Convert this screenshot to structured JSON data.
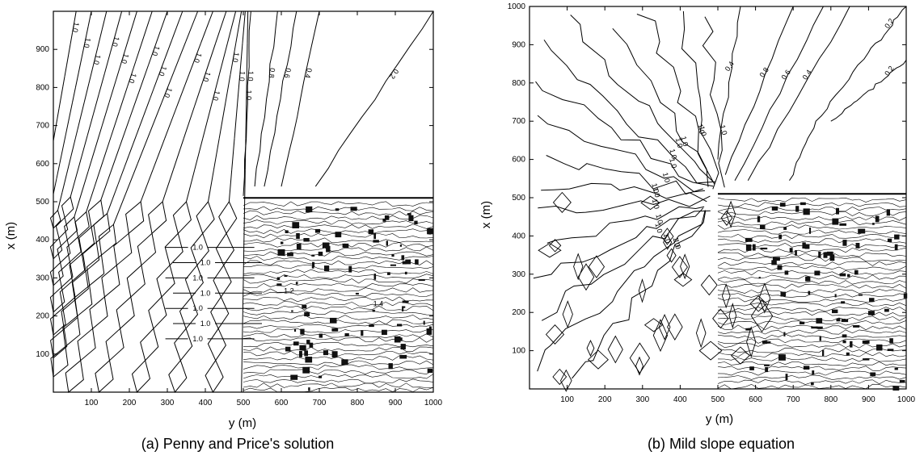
{
  "figure": {
    "panels": [
      {
        "caption": "(a) Penny and Price's solution",
        "xlabel": "y (m)",
        "ylabel": "x (m)",
        "xticks": [
          "100",
          "200",
          "300",
          "400",
          "500",
          "600",
          "700",
          "800",
          "900",
          "1000"
        ],
        "yticks": [
          "100",
          "200",
          "300",
          "400",
          "500",
          "600",
          "700",
          "800",
          "900"
        ]
      },
      {
        "caption": "(b) Mild slope equation",
        "xlabel": "y (m)",
        "ylabel": "x (m)",
        "xticks": [
          "100",
          "200",
          "300",
          "400",
          "500",
          "600",
          "700",
          "800",
          "900",
          "1000"
        ],
        "yticks": [
          "100",
          "200",
          "300",
          "400",
          "500",
          "600",
          "700",
          "800",
          "900",
          "1000"
        ]
      }
    ]
  },
  "chart_data": [
    {
      "type": "contour",
      "title": "(a) Penny and Price's solution",
      "xlabel": "y (m)",
      "ylabel": "x (m)",
      "xlim": [
        0,
        1000
      ],
      "ylim": [
        0,
        1000
      ],
      "breakwater_x": 510,
      "breakwater_y_start": 500,
      "lee_contours": [
        {
          "level": 1.0,
          "points": [
            [
              60,
              1000
            ],
            [
              0,
              660
            ]
          ]
        },
        {
          "level": 1.0,
          "points": [
            [
              100,
              1000
            ],
            [
              0,
              520
            ]
          ]
        },
        {
          "level": 1.0,
          "points": [
            [
              140,
              1000
            ],
            [
              0,
              430
            ]
          ]
        },
        {
          "level": 1.0,
          "points": [
            [
              180,
              1000
            ],
            [
              0,
              350
            ]
          ]
        },
        {
          "level": 1.0,
          "points": [
            [
              220,
              1000
            ],
            [
              0,
              280
            ]
          ]
        },
        {
          "level": 1.0,
          "points": [
            [
              260,
              1000
            ],
            [
              0,
              210
            ]
          ]
        },
        {
          "level": 1.0,
          "points": [
            [
              300,
              1000
            ],
            [
              0,
              150
            ]
          ]
        },
        {
          "level": 1.0,
          "points": [
            [
              340,
              1000
            ],
            [
              0,
              90
            ]
          ]
        },
        {
          "level": 1.0,
          "points": [
            [
              380,
              1000
            ],
            [
              0,
              40
            ]
          ]
        },
        {
          "level": 1.0,
          "points": [
            [
              420,
              1000
            ],
            [
              40,
              0
            ]
          ]
        },
        {
          "level": 1.0,
          "points": [
            [
              455,
              1000
            ],
            [
              120,
              0
            ]
          ]
        },
        {
          "level": 1.0,
          "points": [
            [
              480,
              1000
            ],
            [
              220,
              0
            ]
          ]
        },
        {
          "level": 1.0,
          "points": [
            [
              495,
              1000
            ],
            [
              320,
              0
            ]
          ]
        },
        {
          "level": 1.0,
          "points": [
            [
              505,
              1000
            ],
            [
              420,
              0
            ]
          ]
        },
        {
          "level": 1.0,
          "points": [
            [
              512,
              1000
            ],
            [
              495,
              0
            ]
          ]
        }
      ],
      "shadow_contours": [
        {
          "level": 1.0,
          "points": [
            [
              520,
              1000
            ],
            [
              500,
              515
            ]
          ]
        },
        {
          "level": 0.8,
          "points": [
            [
              590,
              1000
            ],
            [
              530,
              540
            ]
          ]
        },
        {
          "level": 0.6,
          "points": [
            [
              640,
              1000
            ],
            [
              555,
              540
            ]
          ]
        },
        {
          "level": 0.4,
          "points": [
            [
              700,
              1000
            ],
            [
              600,
              540
            ]
          ]
        },
        {
          "level": 0.2,
          "points": [
            [
              1000,
              1000
            ],
            [
              690,
              540
            ]
          ]
        }
      ],
      "label_values": [
        "1.0",
        "0.8",
        "0.6",
        "0.4",
        "0.2",
        "1.2",
        "1.4"
      ]
    },
    {
      "type": "contour",
      "title": "(b) Mild slope equation",
      "xlabel": "y (m)",
      "ylabel": "x (m)",
      "xlim": [
        0,
        1000
      ],
      "ylim": [
        0,
        1000
      ],
      "breakwater_x": 510,
      "breakwater_y_start": 500,
      "label_values": [
        "1.0",
        "0.8",
        "0.6",
        "0.4",
        "0.2"
      ]
    }
  ]
}
